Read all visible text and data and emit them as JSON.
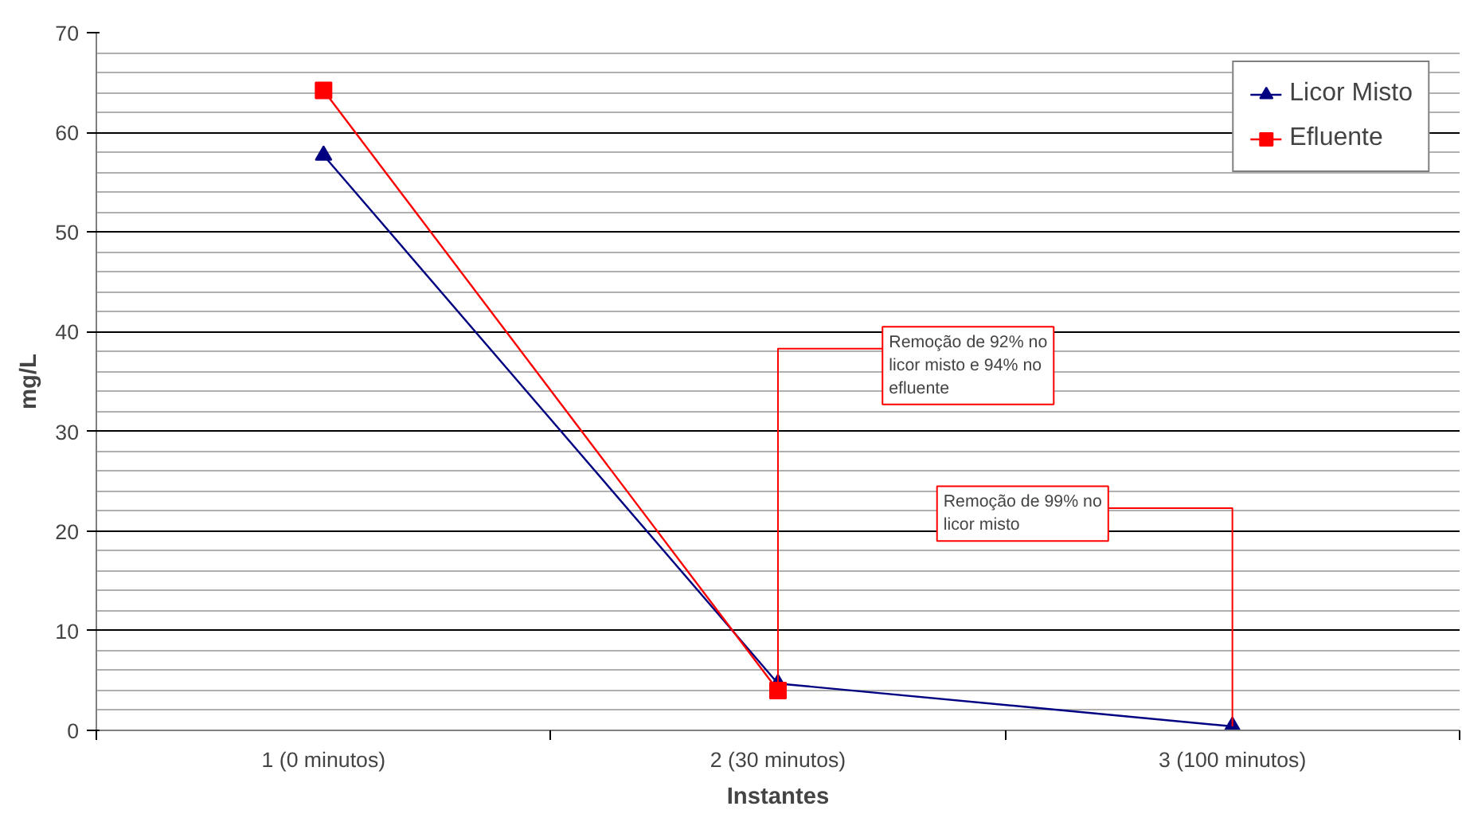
{
  "chart_data": {
    "type": "line",
    "xlabel": "Instantes",
    "ylabel": "mg/L",
    "categories": [
      "1 (0 minutos)",
      "2 (30 minutos)",
      "3 (100 minutos)"
    ],
    "series": [
      {
        "name": "Licor Misto",
        "color": "#000080",
        "marker": "triangle",
        "values": [
          57.7,
          4.7,
          0.4
        ]
      },
      {
        "name": "Efluente",
        "color": "#ff0000",
        "marker": "square",
        "values": [
          64.2,
          4.0,
          null
        ]
      }
    ],
    "ylim": [
      0,
      70
    ],
    "yticks": [
      0,
      10,
      20,
      30,
      40,
      50,
      60,
      70
    ],
    "grid": "y",
    "legend": "top right",
    "annotations": [
      {
        "text": "Remoção de 92% no licor misto e 94% no efluente",
        "x": "2 (30 minutos)",
        "y": 4.7
      },
      {
        "text": "Remoção de 99% no licor misto",
        "x": "3 (100 minutos)",
        "y": 0.4
      }
    ]
  }
}
